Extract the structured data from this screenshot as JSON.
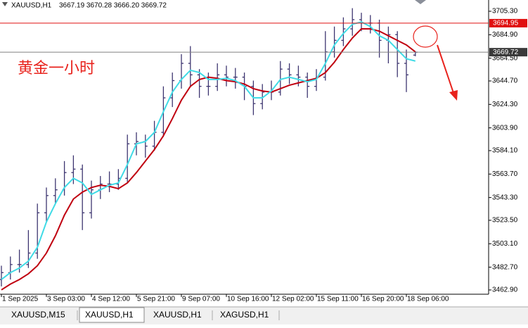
{
  "chart_data": {
    "type": "ohlc",
    "title": "XAUUSD,H1",
    "subtitle": "3667.19 3670.28 3666.20 3669.72",
    "color": "#3d3570",
    "categories": [
      "1 Sep 2025",
      null,
      null,
      null,
      null,
      "3 Sep 03:00",
      null,
      null,
      null,
      null,
      "4 Sep 12:00",
      null,
      null,
      null,
      null,
      "5 Sep 21:00",
      null,
      null,
      null,
      null,
      "9 Sep 07:00",
      null,
      null,
      null,
      null,
      "10 Sep 16:00",
      null,
      null,
      null,
      null,
      "12 Sep 02:00",
      null,
      null,
      null,
      null,
      "15 Sep 11:00",
      null,
      null,
      null,
      null,
      "16 Sep 20:00",
      null,
      null,
      null,
      null,
      "18 Sep 06:00",
      null
    ],
    "open": [
      3472,
      3478,
      3485,
      3485,
      3495,
      3530,
      3545,
      3550,
      3565,
      3568,
      3530,
      3550,
      3555,
      3555,
      3560,
      3590,
      3592,
      3588,
      3600,
      3630,
      3645,
      3660,
      3650,
      3640,
      3640,
      3650,
      3648,
      3648,
      3640,
      3625,
      3635,
      3635,
      3655,
      3650,
      3648,
      3640,
      3648,
      3670,
      3680,
      3690,
      3698,
      3695,
      3695,
      3680,
      3685,
      3660,
      3667.19
    ],
    "high": [
      3484,
      3492,
      3498,
      3515,
      3538,
      3552,
      3560,
      3575,
      3580,
      3572,
      3558,
      3562,
      3566,
      3568,
      3598,
      3600,
      3598,
      3610,
      3640,
      3652,
      3668,
      3675,
      3655,
      3652,
      3660,
      3658,
      3656,
      3652,
      3645,
      3642,
      3645,
      3662,
      3660,
      3658,
      3652,
      3655,
      3688,
      3692,
      3700,
      3708,
      3704,
      3702,
      3698,
      3692,
      3688,
      3672,
      3670.28
    ],
    "low": [
      3466,
      3472,
      3478,
      3482,
      3490,
      3522,
      3538,
      3545,
      3555,
      3515,
      3525,
      3542,
      3548,
      3550,
      3556,
      3580,
      3578,
      3584,
      3596,
      3622,
      3638,
      3640,
      3630,
      3632,
      3636,
      3640,
      3638,
      3628,
      3615,
      3620,
      3628,
      3632,
      3642,
      3640,
      3630,
      3636,
      3645,
      3665,
      3675,
      3684,
      3688,
      3686,
      3665,
      3660,
      3648,
      3635,
      3666.2
    ],
    "close": [
      3478,
      3485,
      3485,
      3495,
      3530,
      3545,
      3550,
      3565,
      3568,
      3530,
      3550,
      3555,
      3555,
      3560,
      3590,
      3592,
      3588,
      3600,
      3630,
      3645,
      3660,
      3650,
      3640,
      3640,
      3650,
      3648,
      3648,
      3640,
      3625,
      3635,
      3635,
      3655,
      3650,
      3648,
      3640,
      3648,
      3670,
      3680,
      3690,
      3698,
      3695,
      3695,
      3680,
      3685,
      3660,
      3650,
      3669.72
    ],
    "lines": [
      {
        "color": "#c00010",
        "values": [
          3463,
          3468,
          3472,
          3477,
          3484,
          3495,
          3510,
          3528,
          3542,
          3548,
          3552,
          3554,
          3553,
          3551,
          3556,
          3565,
          3575,
          3585,
          3597,
          3612,
          3628,
          3640,
          3646,
          3648,
          3647,
          3645,
          3644,
          3642,
          3638,
          3636,
          3635,
          3638,
          3641,
          3643,
          3645,
          3647,
          3652,
          3661,
          3672,
          3682,
          3690,
          3690,
          3688,
          3684,
          3680,
          3676,
          3670
        ]
      },
      {
        "color": "#3fdbe6",
        "values": [
          3472,
          3478,
          3482,
          3488,
          3500,
          3522,
          3538,
          3552,
          3560,
          3556,
          3546,
          3550,
          3554,
          3556,
          3572,
          3590,
          3592,
          3600,
          3618,
          3635,
          3646,
          3654,
          3652,
          3646,
          3646,
          3647,
          3645,
          3640,
          3630,
          3630,
          3636,
          3646,
          3648,
          3646,
          3644,
          3646,
          3660,
          3676,
          3686,
          3694,
          3696,
          3692,
          3684,
          3680,
          3672,
          3664,
          3662
        ]
      }
    ],
    "price_lines": [
      {
        "value": 3694.95,
        "color": "#e01010"
      },
      {
        "value": 3669.72,
        "color": "#808080"
      }
    ],
    "ylim": [
      3459.2,
      3715.1
    ],
    "yticks": [
      {
        "value": 3705.3,
        "label": "3705.30"
      },
      {
        "value": 3684.9,
        "label": "3684.90"
      },
      {
        "value": 3664.5,
        "label": "3664.50"
      },
      {
        "value": 3644.7,
        "label": "3644.70"
      },
      {
        "value": 3624.3,
        "label": "3624.30"
      },
      {
        "value": 3603.9,
        "label": "3603.90"
      },
      {
        "value": 3584.1,
        "label": "3584.10"
      },
      {
        "value": 3563.7,
        "label": "3563.70"
      },
      {
        "value": 3543.3,
        "label": "3543.30"
      },
      {
        "value": 3523.5,
        "label": "3523.50"
      },
      {
        "value": 3503.1,
        "label": "3503.10"
      },
      {
        "value": 3482.7,
        "label": "3482.70"
      },
      {
        "value": 3462.9,
        "label": "3462.90"
      }
    ],
    "grid": false,
    "annotations": [
      {
        "text": "黄金一小时"
      }
    ]
  },
  "tabs": [
    "XAUUSD,M15",
    "XAUUSD,H1",
    "XAUUSD,H1",
    "XAGUSD,H1"
  ],
  "active_tab": 1
}
